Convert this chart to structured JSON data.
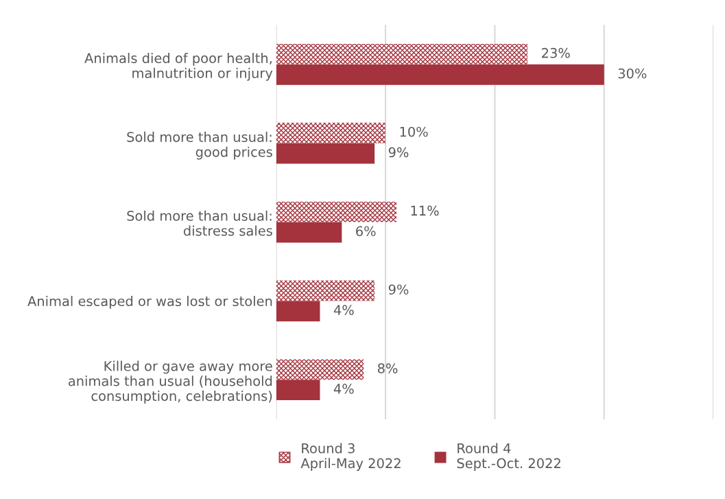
{
  "chart_data": {
    "type": "bar",
    "orientation": "horizontal",
    "categories": [
      "Animals died of poor health,\nmalnutrition or injury",
      "Sold more than usual:\ngood prices",
      "Sold more than usual:\ndistress sales",
      "Animal escaped or was lost or stolen",
      "Killed or gave away more\nanimals than usual (household\nconsumption, celebrations)"
    ],
    "series": [
      {
        "name": "Round 3\nApril-May 2022",
        "color": "#a4333d",
        "values": [
          23,
          10,
          11,
          9,
          8
        ],
        "value_labels": [
          "23%",
          "10%",
          "11%",
          "9%",
          "8%"
        ]
      },
      {
        "name": "Round 4\nSept.-Oct. 2022",
        "color": "#a4333d",
        "values": [
          30,
          9,
          6,
          4,
          4
        ],
        "value_labels": [
          "30%",
          "9%",
          "6%",
          "4%",
          "4%"
        ]
      }
    ],
    "xlim": [
      0,
      40
    ],
    "xticks": [
      {
        "value": 0,
        "label": null
      },
      {
        "value": 10,
        "label": null
      },
      {
        "value": 20,
        "label": null
      },
      {
        "value": 30,
        "label": null
      },
      {
        "value": 40,
        "label": null
      }
    ],
    "grid": "x",
    "legend": "bottom",
    "tick_labels": "y"
  }
}
